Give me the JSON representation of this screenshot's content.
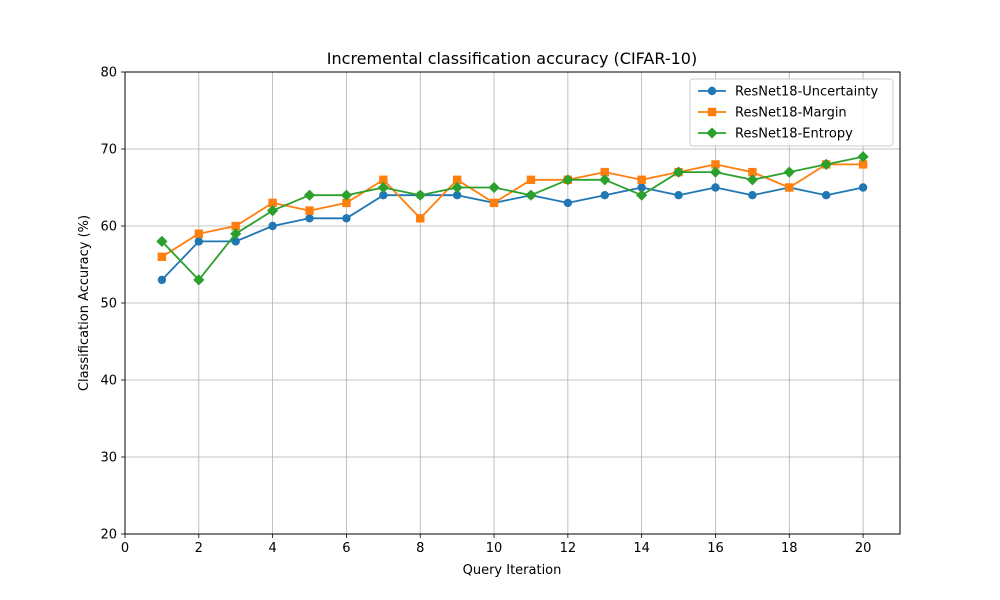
{
  "chart_data": {
    "type": "line",
    "title": "Incremental classification accuracy (CIFAR-10)",
    "xlabel": "Query Iteration",
    "ylabel": "Classification Accuracy (%)",
    "xlim": [
      0,
      21
    ],
    "ylim": [
      20,
      80
    ],
    "xticks": [
      0,
      2,
      4,
      6,
      8,
      10,
      12,
      14,
      16,
      18,
      20
    ],
    "yticks": [
      20,
      30,
      40,
      50,
      60,
      70,
      80
    ],
    "grid": true,
    "legend_position": "top-right",
    "x": [
      1,
      2,
      3,
      4,
      5,
      6,
      7,
      8,
      9,
      10,
      11,
      12,
      13,
      14,
      15,
      16,
      17,
      18,
      19,
      20
    ],
    "series": [
      {
        "name": "ResNet18-Uncertainty",
        "color": "#1f77b4",
        "marker": "circle",
        "values": [
          53,
          58,
          58,
          60,
          61,
          61,
          64,
          64,
          64,
          63,
          64,
          63,
          64,
          65,
          64,
          65,
          64,
          65,
          64,
          65
        ]
      },
      {
        "name": "ResNet18-Margin",
        "color": "#ff7f0e",
        "marker": "square",
        "values": [
          56,
          59,
          60,
          63,
          62,
          63,
          66,
          61,
          66,
          63,
          66,
          66,
          67,
          66,
          67,
          68,
          67,
          65,
          68,
          68
        ]
      },
      {
        "name": "ResNet18-Entropy",
        "color": "#2ca02c",
        "marker": "diamond",
        "values": [
          58,
          53,
          59,
          62,
          64,
          64,
          65,
          64,
          65,
          65,
          64,
          66,
          66,
          64,
          67,
          67,
          66,
          67,
          68,
          69
        ]
      }
    ]
  }
}
